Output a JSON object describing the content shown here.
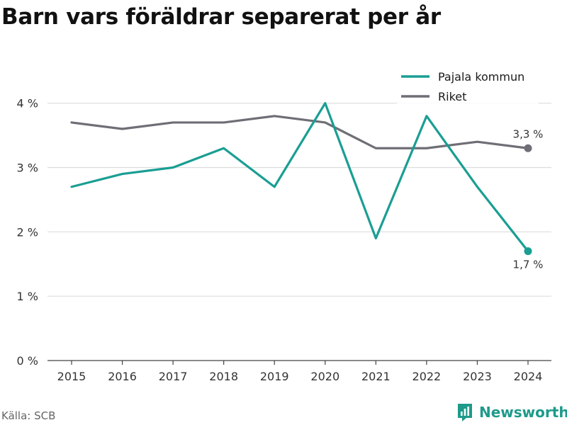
{
  "title": "Barn vars föräldrar separerat per år",
  "source": "Källa: SCB",
  "brand": "Newsworthy",
  "colors": {
    "pajala": "#1a9e93",
    "riket": "#6e6e76",
    "grid": "#dddddd",
    "axis": "#444444",
    "brand": "#1d9a8a"
  },
  "chart_data": {
    "type": "line",
    "x": [
      "2015",
      "2016",
      "2017",
      "2018",
      "2019",
      "2020",
      "2021",
      "2022",
      "2023",
      "2024"
    ],
    "y_ticks": [
      "0 %",
      "1 %",
      "2 %",
      "3 %",
      "4 %"
    ],
    "ylim": [
      0,
      4.8
    ],
    "grid": true,
    "legend_position": "top-right",
    "series": [
      {
        "name": "Pajala kommun",
        "values": [
          2.7,
          2.9,
          3.0,
          3.3,
          2.7,
          4.0,
          1.9,
          3.8,
          2.7,
          1.7
        ],
        "end_label": "1,7 %"
      },
      {
        "name": "Riket",
        "values": [
          3.7,
          3.6,
          3.7,
          3.7,
          3.8,
          3.7,
          3.3,
          3.3,
          3.4,
          3.3
        ],
        "end_label": "3,3 %"
      }
    ]
  }
}
